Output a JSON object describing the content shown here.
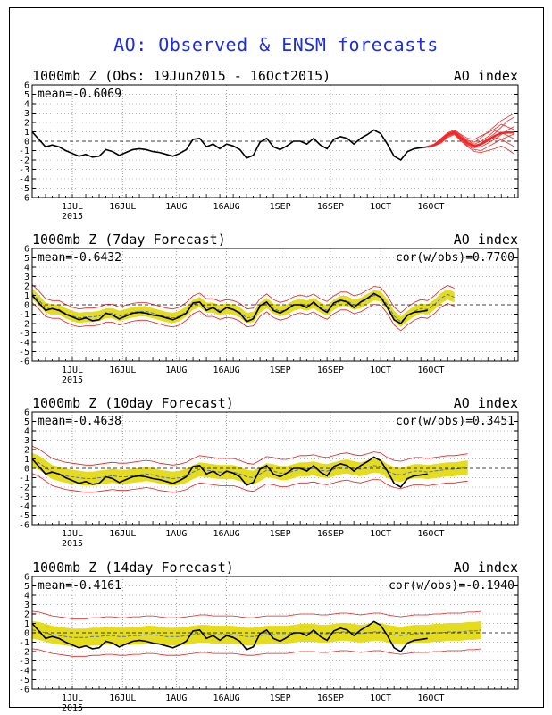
{
  "title": "AO: Observed & ENSM forecasts",
  "colors": {
    "observed": "#000000",
    "band": "#e6dc1e",
    "spread": "#e02020",
    "ensemble": "#f02828",
    "ensmean": "#4b6ed2",
    "title": "#1f2fd8"
  },
  "x_ticks": [
    {
      "day": 12,
      "label": "1JUL",
      "sub": "2015"
    },
    {
      "day": 27,
      "label": "16JUL",
      "sub": ""
    },
    {
      "day": 43,
      "label": "1AUG",
      "sub": ""
    },
    {
      "day": 58,
      "label": "16AUG",
      "sub": ""
    },
    {
      "day": 74,
      "label": "1SEP",
      "sub": ""
    },
    {
      "day": 89,
      "label": "16SEP",
      "sub": ""
    },
    {
      "day": 104,
      "label": "1OCT",
      "sub": ""
    },
    {
      "day": 119,
      "label": "16OCT",
      "sub": ""
    }
  ],
  "chart_data": [
    {
      "type": "line",
      "title_left": "1000mb Z (Obs: 19Jun2015 - 16Oct2015)",
      "title_right": "AO index",
      "mean_label": "mean=-0.6069",
      "cor_label": "",
      "ylim": [
        -6,
        6
      ],
      "yticks": [
        -6,
        -5,
        -4,
        -3,
        -2,
        -1,
        0,
        1,
        2,
        3,
        4,
        5,
        6
      ],
      "observed": {
        "x": [
          0,
          2,
          4,
          6,
          8,
          10,
          12,
          14,
          16,
          18,
          20,
          22,
          24,
          26,
          28,
          30,
          32,
          34,
          36,
          38,
          40,
          42,
          44,
          46,
          48,
          50,
          52,
          54,
          56,
          58,
          60,
          62,
          64,
          66,
          68,
          70,
          72,
          74,
          76,
          78,
          80,
          82,
          84,
          86,
          88,
          90,
          92,
          94,
          96,
          98,
          100,
          102,
          104,
          106,
          108,
          110,
          112,
          114,
          116,
          118
        ],
        "y": [
          1.0,
          0.2,
          -0.6,
          -0.4,
          -0.6,
          -1.0,
          -1.3,
          -1.6,
          -1.4,
          -1.7,
          -1.6,
          -0.9,
          -1.1,
          -1.5,
          -1.2,
          -0.9,
          -0.8,
          -0.9,
          -1.1,
          -1.2,
          -1.4,
          -1.6,
          -1.3,
          -0.9,
          0.2,
          0.3,
          -0.6,
          -0.3,
          -0.8,
          -0.3,
          -0.5,
          -0.9,
          -1.8,
          -1.5,
          -0.1,
          0.3,
          -0.6,
          -0.9,
          -0.5,
          0.0,
          0.0,
          -0.3,
          0.3,
          -0.4,
          -0.8,
          0.2,
          0.5,
          0.3,
          -0.3,
          0.3,
          0.7,
          1.2,
          0.8,
          -0.3,
          -1.6,
          -2.0,
          -1.1,
          -0.8,
          -0.7,
          -0.6
        ]
      },
      "ensemble_x": [
        118,
        120,
        122,
        124,
        126,
        128,
        130,
        132,
        134,
        136,
        138,
        140,
        142,
        144
      ],
      "ensemble": [
        [
          -0.6,
          -0.3,
          0.2,
          0.8,
          1.1,
          0.6,
          0.1,
          -0.1,
          0.4,
          1.0,
          1.6,
          2.2,
          2.6,
          3.0
        ],
        [
          -0.6,
          -0.4,
          0.0,
          0.6,
          1.0,
          0.4,
          -0.2,
          -0.5,
          -0.2,
          0.3,
          0.8,
          1.5,
          2.2,
          2.6
        ],
        [
          -0.6,
          -0.4,
          0.1,
          0.7,
          0.9,
          0.2,
          -0.4,
          -0.7,
          -0.6,
          -0.2,
          0.2,
          0.7,
          1.2,
          1.6
        ],
        [
          -0.6,
          -0.5,
          -0.1,
          0.5,
          0.8,
          0.1,
          -0.5,
          -0.9,
          -1.0,
          -0.6,
          -0.2,
          0.2,
          0.5,
          0.8
        ],
        [
          -0.6,
          -0.3,
          0.3,
          0.9,
          1.2,
          0.7,
          0.3,
          0.2,
          0.6,
          0.9,
          1.3,
          1.8,
          1.5,
          1.2
        ],
        [
          -0.6,
          -0.5,
          -0.2,
          0.4,
          0.7,
          0.0,
          -0.6,
          -1.1,
          -1.2,
          -1.0,
          -0.8,
          -0.5,
          -0.9,
          -1.4
        ],
        [
          -0.6,
          -0.4,
          0.2,
          0.8,
          1.0,
          0.5,
          0.0,
          -0.3,
          0.0,
          0.5,
          1.1,
          0.9,
          0.6,
          0.2
        ],
        [
          -0.6,
          -0.4,
          0.0,
          0.6,
          0.9,
          0.3,
          -0.3,
          -0.6,
          -0.4,
          0.0,
          0.4,
          0.2,
          -0.2,
          -0.6
        ]
      ]
    },
    {
      "type": "line",
      "title_left": "1000mb Z (7day Forecast)",
      "title_right": "AO index",
      "mean_label": "mean=-0.6432",
      "cor_label": "cor(w/obs)=0.7700",
      "ylim": [
        -6,
        6
      ],
      "yticks": [
        -6,
        -5,
        -4,
        -3,
        -2,
        -1,
        0,
        1,
        2,
        3,
        4,
        5,
        6
      ],
      "observed": {
        "x": [
          0,
          2,
          4,
          6,
          8,
          10,
          12,
          14,
          16,
          18,
          20,
          22,
          24,
          26,
          28,
          30,
          32,
          34,
          36,
          38,
          40,
          42,
          44,
          46,
          48,
          50,
          52,
          54,
          56,
          58,
          60,
          62,
          64,
          66,
          68,
          70,
          72,
          74,
          76,
          78,
          80,
          82,
          84,
          86,
          88,
          90,
          92,
          94,
          96,
          98,
          100,
          102,
          104,
          106,
          108,
          110,
          112,
          114,
          116,
          118
        ],
        "y": [
          1.0,
          0.2,
          -0.6,
          -0.4,
          -0.6,
          -1.0,
          -1.3,
          -1.6,
          -1.4,
          -1.7,
          -1.6,
          -0.9,
          -1.1,
          -1.5,
          -1.2,
          -0.9,
          -0.8,
          -0.9,
          -1.1,
          -1.2,
          -1.4,
          -1.6,
          -1.3,
          -0.9,
          0.2,
          0.3,
          -0.6,
          -0.3,
          -0.8,
          -0.3,
          -0.5,
          -0.9,
          -1.8,
          -1.5,
          -0.1,
          0.3,
          -0.6,
          -0.9,
          -0.5,
          0.0,
          0.0,
          -0.3,
          0.3,
          -0.4,
          -0.8,
          0.2,
          0.5,
          0.3,
          -0.3,
          0.3,
          0.7,
          1.2,
          0.8,
          -0.3,
          -1.6,
          -2.0,
          -1.1,
          -0.8,
          -0.7,
          -0.6
        ]
      },
      "forecast": {
        "x": [
          0,
          2,
          4,
          6,
          8,
          10,
          12,
          14,
          16,
          18,
          20,
          22,
          24,
          26,
          28,
          30,
          32,
          34,
          36,
          38,
          40,
          42,
          44,
          46,
          48,
          50,
          52,
          54,
          56,
          58,
          60,
          62,
          64,
          66,
          68,
          70,
          72,
          74,
          76,
          78,
          80,
          82,
          84,
          86,
          88,
          90,
          92,
          94,
          96,
          98,
          100,
          102,
          104,
          106,
          108,
          110,
          112,
          114,
          116,
          118,
          120,
          122,
          124,
          126
        ],
        "mean": [
          1.2,
          0.5,
          -0.3,
          -0.5,
          -0.5,
          -0.9,
          -1.2,
          -1.4,
          -1.3,
          -1.3,
          -1.2,
          -0.9,
          -0.9,
          -1.2,
          -1.0,
          -0.8,
          -0.7,
          -0.7,
          -0.9,
          -1.1,
          -1.3,
          -1.4,
          -1.2,
          -0.7,
          0.0,
          0.3,
          -0.3,
          -0.3,
          -0.6,
          -0.4,
          -0.5,
          -0.8,
          -1.4,
          -1.3,
          -0.3,
          0.2,
          -0.4,
          -0.7,
          -0.5,
          -0.1,
          0.1,
          -0.1,
          0.2,
          -0.3,
          -0.6,
          0.0,
          0.4,
          0.4,
          0.0,
          0.2,
          0.6,
          1.0,
          0.9,
          0.0,
          -1.2,
          -1.8,
          -1.2,
          -0.7,
          -0.4,
          -0.5,
          0.0,
          0.7,
          1.1,
          0.8
        ],
        "band_half": 0.55,
        "spread_half": 0.95
      }
    },
    {
      "type": "line",
      "title_left": "1000mb Z (10day Forecast)",
      "title_right": "AO index",
      "mean_label": "mean=-0.4638",
      "cor_label": "cor(w/obs)=0.3451",
      "ylim": [
        -6,
        6
      ],
      "yticks": [
        -6,
        -5,
        -4,
        -3,
        -2,
        -1,
        0,
        1,
        2,
        3,
        4,
        5,
        6
      ],
      "observed": {
        "x": [
          0,
          2,
          4,
          6,
          8,
          10,
          12,
          14,
          16,
          18,
          20,
          22,
          24,
          26,
          28,
          30,
          32,
          34,
          36,
          38,
          40,
          42,
          44,
          46,
          48,
          50,
          52,
          54,
          56,
          58,
          60,
          62,
          64,
          66,
          68,
          70,
          72,
          74,
          76,
          78,
          80,
          82,
          84,
          86,
          88,
          90,
          92,
          94,
          96,
          98,
          100,
          102,
          104,
          106,
          108,
          110,
          112,
          114,
          116,
          118
        ],
        "y": [
          1.0,
          0.2,
          -0.6,
          -0.4,
          -0.6,
          -1.0,
          -1.3,
          -1.6,
          -1.4,
          -1.7,
          -1.6,
          -0.9,
          -1.1,
          -1.5,
          -1.2,
          -0.9,
          -0.8,
          -0.9,
          -1.1,
          -1.2,
          -1.4,
          -1.6,
          -1.3,
          -0.9,
          0.2,
          0.3,
          -0.6,
          -0.3,
          -0.8,
          -0.3,
          -0.5,
          -0.9,
          -1.8,
          -1.5,
          -0.1,
          0.3,
          -0.6,
          -0.9,
          -0.5,
          0.0,
          0.0,
          -0.3,
          0.3,
          -0.4,
          -0.8,
          0.2,
          0.5,
          0.3,
          -0.3,
          0.3,
          0.7,
          1.2,
          0.8,
          -0.3,
          -1.6,
          -2.0,
          -1.1,
          -0.8,
          -0.7,
          -0.6
        ]
      },
      "forecast": {
        "x": [
          0,
          2,
          4,
          6,
          8,
          10,
          12,
          14,
          16,
          18,
          20,
          22,
          24,
          26,
          28,
          30,
          32,
          34,
          36,
          38,
          40,
          42,
          44,
          46,
          48,
          50,
          52,
          54,
          56,
          58,
          60,
          62,
          64,
          66,
          68,
          70,
          72,
          74,
          76,
          78,
          80,
          82,
          84,
          86,
          88,
          90,
          92,
          94,
          96,
          98,
          100,
          102,
          104,
          106,
          108,
          110,
          112,
          114,
          116,
          118,
          120,
          122,
          124,
          126,
          128,
          130
        ],
        "mean": [
          0.9,
          0.6,
          0.1,
          -0.4,
          -0.6,
          -0.8,
          -0.9,
          -1.0,
          -1.1,
          -1.1,
          -1.0,
          -0.9,
          -0.8,
          -0.9,
          -0.9,
          -0.8,
          -0.7,
          -0.6,
          -0.7,
          -0.9,
          -1.0,
          -1.1,
          -1.0,
          -0.8,
          -0.4,
          -0.1,
          -0.2,
          -0.3,
          -0.4,
          -0.4,
          -0.4,
          -0.6,
          -0.9,
          -1.0,
          -0.6,
          -0.2,
          -0.3,
          -0.5,
          -0.5,
          -0.3,
          -0.1,
          -0.1,
          0.0,
          -0.2,
          -0.3,
          -0.1,
          0.1,
          0.2,
          0.0,
          -0.1,
          0.1,
          0.3,
          0.2,
          -0.3,
          -0.6,
          -0.7,
          -0.5,
          -0.3,
          -0.3,
          -0.4,
          -0.3,
          -0.2,
          -0.1,
          -0.1,
          0.0,
          0.1
        ],
        "band_half": 0.75,
        "spread_half": 1.45
      }
    },
    {
      "type": "line",
      "title_left": "1000mb Z (14day Forecast)",
      "title_right": "AO index",
      "mean_label": "mean=-0.4161",
      "cor_label": "cor(w/obs)=-0.1940",
      "ylim": [
        -6,
        6
      ],
      "yticks": [
        -6,
        -5,
        -4,
        -3,
        -2,
        -1,
        0,
        1,
        2,
        3,
        4,
        5,
        6
      ],
      "observed": {
        "x": [
          0,
          2,
          4,
          6,
          8,
          10,
          12,
          14,
          16,
          18,
          20,
          22,
          24,
          26,
          28,
          30,
          32,
          34,
          36,
          38,
          40,
          42,
          44,
          46,
          48,
          50,
          52,
          54,
          56,
          58,
          60,
          62,
          64,
          66,
          68,
          70,
          72,
          74,
          76,
          78,
          80,
          82,
          84,
          86,
          88,
          90,
          92,
          94,
          96,
          98,
          100,
          102,
          104,
          106,
          108,
          110,
          112,
          114,
          116,
          118
        ],
        "y": [
          1.0,
          0.2,
          -0.6,
          -0.4,
          -0.6,
          -1.0,
          -1.3,
          -1.6,
          -1.4,
          -1.7,
          -1.6,
          -0.9,
          -1.1,
          -1.5,
          -1.2,
          -0.9,
          -0.8,
          -0.9,
          -1.1,
          -1.2,
          -1.4,
          -1.6,
          -1.3,
          -0.9,
          0.2,
          0.3,
          -0.6,
          -0.3,
          -0.8,
          -0.3,
          -0.5,
          -0.9,
          -1.8,
          -1.5,
          -0.1,
          0.3,
          -0.6,
          -0.9,
          -0.5,
          0.0,
          0.0,
          -0.3,
          0.3,
          -0.4,
          -0.8,
          0.2,
          0.5,
          0.3,
          -0.3,
          0.3,
          0.7,
          1.2,
          0.8,
          -0.3,
          -1.6,
          -2.0,
          -1.1,
          -0.8,
          -0.7,
          -0.6
        ]
      },
      "forecast": {
        "x": [
          0,
          2,
          4,
          6,
          8,
          10,
          12,
          14,
          16,
          18,
          20,
          22,
          24,
          26,
          28,
          30,
          32,
          34,
          36,
          38,
          40,
          42,
          44,
          46,
          48,
          50,
          52,
          54,
          56,
          58,
          60,
          62,
          64,
          66,
          68,
          70,
          72,
          74,
          76,
          78,
          80,
          82,
          84,
          86,
          88,
          90,
          92,
          94,
          96,
          98,
          100,
          102,
          104,
          106,
          108,
          110,
          112,
          114,
          116,
          118,
          120,
          122,
          124,
          126,
          128,
          130,
          132,
          134
        ],
        "mean": [
          0.3,
          0.2,
          0.0,
          -0.2,
          -0.3,
          -0.4,
          -0.5,
          -0.5,
          -0.5,
          -0.4,
          -0.4,
          -0.3,
          -0.3,
          -0.4,
          -0.4,
          -0.3,
          -0.3,
          -0.2,
          -0.2,
          -0.3,
          -0.4,
          -0.4,
          -0.4,
          -0.3,
          -0.2,
          -0.1,
          -0.1,
          -0.2,
          -0.2,
          -0.2,
          -0.2,
          -0.3,
          -0.4,
          -0.4,
          -0.3,
          -0.2,
          -0.2,
          -0.2,
          -0.2,
          -0.1,
          0.0,
          0.0,
          0.0,
          -0.1,
          -0.1,
          0.0,
          0.1,
          0.1,
          0.0,
          -0.1,
          0.0,
          0.1,
          0.1,
          -0.1,
          -0.2,
          -0.3,
          -0.2,
          -0.1,
          -0.1,
          -0.1,
          0.0,
          0.0,
          0.1,
          0.1,
          0.1,
          0.2,
          0.2,
          0.3
        ],
        "band_half": 0.95,
        "spread_half": 2.0
      }
    }
  ]
}
